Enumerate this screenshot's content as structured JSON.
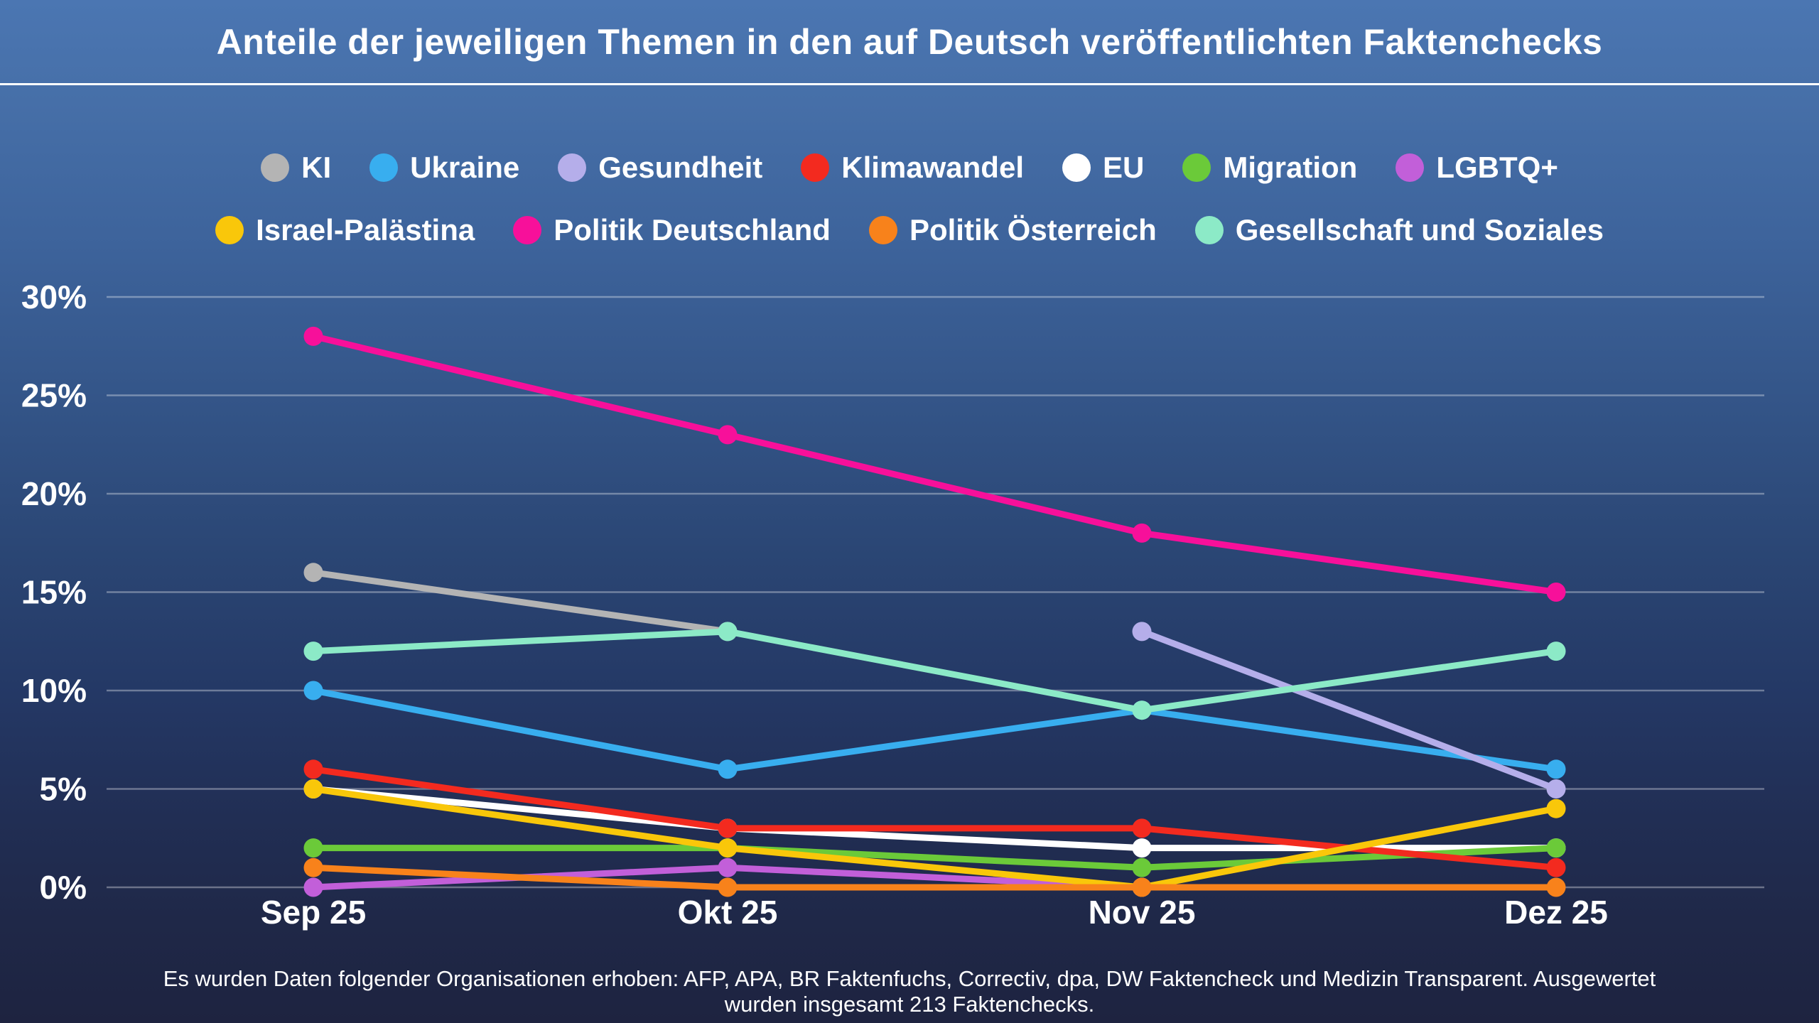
{
  "title": "Anteile der jeweiligen Themen in den auf Deutsch veröffentlichten Faktenchecks",
  "footer": {
    "line1": "Es wurden Daten folgender Organisationen erhoben: AFP, APA, BR Faktenfuchs, Correctiv, dpa, DW Faktencheck und Medizin Transparent. Ausgewertet",
    "line2": "wurden insgesamt 213 Faktenchecks."
  },
  "chart_data": {
    "type": "line",
    "title": "Anteile der jeweiligen Themen in den auf Deutsch veröffentlichten Faktenchecks",
    "x_categories": [
      "Sep 25",
      "Okt 25",
      "Nov 25",
      "Dez 25"
    ],
    "y_tick_labels": [
      "30%",
      "25%",
      "20%",
      "15%",
      "10%",
      "5%",
      "0%"
    ],
    "y_ticks": [
      30,
      25,
      20,
      15,
      10,
      5,
      0
    ],
    "ylim": [
      0,
      30
    ],
    "unit": "%",
    "grid": true,
    "legend_position": "top",
    "series": [
      {
        "name": "KI",
        "color": "#b4b4b4",
        "values": [
          16,
          13,
          null,
          null
        ]
      },
      {
        "name": "Ukraine",
        "color": "#38aeef",
        "values": [
          10,
          6,
          9,
          6
        ]
      },
      {
        "name": "Gesundheit",
        "color": "#b5aeea",
        "values": [
          null,
          null,
          13,
          5
        ]
      },
      {
        "name": "Klimawandel",
        "color": "#f32a1f",
        "values": [
          6,
          3,
          3,
          1
        ]
      },
      {
        "name": "EU",
        "color": "#ffffff",
        "values": [
          5,
          3,
          2,
          2
        ]
      },
      {
        "name": "Migration",
        "color": "#6bca39",
        "values": [
          2,
          2,
          1,
          2
        ]
      },
      {
        "name": "LGBTQ+",
        "color": "#c25fd9",
        "values": [
          0,
          1,
          0,
          null
        ]
      },
      {
        "name": "Israel-Palästina",
        "color": "#f9c70a",
        "values": [
          5,
          2,
          0,
          4
        ]
      },
      {
        "name": "Politik Deutschland",
        "color": "#f7109a",
        "values": [
          28,
          23,
          18,
          15
        ]
      },
      {
        "name": "Politik Österreich",
        "color": "#f8821b",
        "values": [
          1,
          0,
          0,
          0
        ]
      },
      {
        "name": "Gesellschaft und Soziales",
        "color": "#8ceac7",
        "values": [
          12,
          13,
          9,
          12
        ]
      }
    ],
    "legend_rows": [
      [
        "KI",
        "Ukraine",
        "Gesundheit",
        "Klimawandel",
        "EU",
        "Migration",
        "LGBTQ+"
      ],
      [
        "Israel-Palästina",
        "Politik Deutschland",
        "Politik Österreich",
        "Gesellschaft und Soziales"
      ]
    ],
    "draw_order": [
      "KI",
      "EU",
      "Migration",
      "Klimawandel",
      "LGBTQ+",
      "Israel-Palästina",
      "Politik Österreich",
      "Ukraine",
      "Gesundheit",
      "Gesellschaft und Soziales",
      "Politik Deutschland"
    ]
  }
}
